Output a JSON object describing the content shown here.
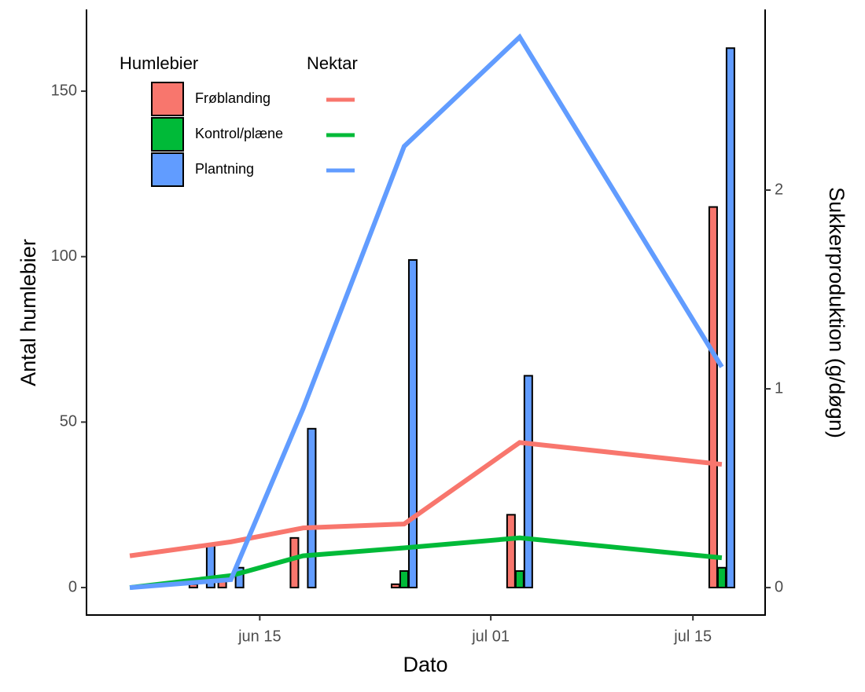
{
  "chart_data": {
    "type": "bar",
    "x": [
      "jun 06",
      "jun 11",
      "jun 13",
      "jun 18",
      "jun 25",
      "jul 03",
      "jul 17"
    ],
    "series": [
      {
        "name": "Frøblanding",
        "color": "#F8766D",
        "values": [
          0,
          1,
          3,
          15,
          1,
          22,
          115
        ]
      },
      {
        "name": "Kontrol/plæne",
        "color": "#00BA38",
        "values": [
          0,
          0,
          0,
          0,
          5,
          5,
          6
        ]
      },
      {
        "name": "Plantning",
        "color": "#619CFF",
        "values": [
          0,
          13,
          6,
          48,
          99,
          64,
          163
        ]
      }
    ],
    "lines": {
      "type": "line",
      "axis": "y2",
      "x": [
        "jun 06",
        "jun 13",
        "jun 18",
        "jun 25",
        "jul 03",
        "jul 17"
      ],
      "series": [
        {
          "color": "#F8766D",
          "values": [
            0.16,
            0.23,
            0.3,
            0.32,
            0.73,
            0.62
          ]
        },
        {
          "color": "#00BA38",
          "values": [
            0,
            0.06,
            0.16,
            0.2,
            0.25,
            0.15
          ]
        },
        {
          "color": "#619CFF",
          "values": [
            0,
            0.04,
            0.9,
            2.22,
            2.77,
            1.11
          ]
        }
      ]
    },
    "bar_legend_title": "Humlebier",
    "line_legend_title": "Nektar",
    "xlabel": "Dato",
    "ylabel": "Antal humlebier",
    "y2label": "Sukkerproduktion (g/døgn)",
    "xlim": [
      "jun 03",
      "jul 20"
    ],
    "xticks": [
      "jun 15",
      "jul 01",
      "jul 15"
    ],
    "ylim": [
      -8.3,
      174.7
    ],
    "yticks": [
      0,
      50,
      100,
      150
    ],
    "y2lim": [
      -0.138,
      2.909
    ],
    "y2ticks": [
      0,
      1,
      2
    ]
  }
}
